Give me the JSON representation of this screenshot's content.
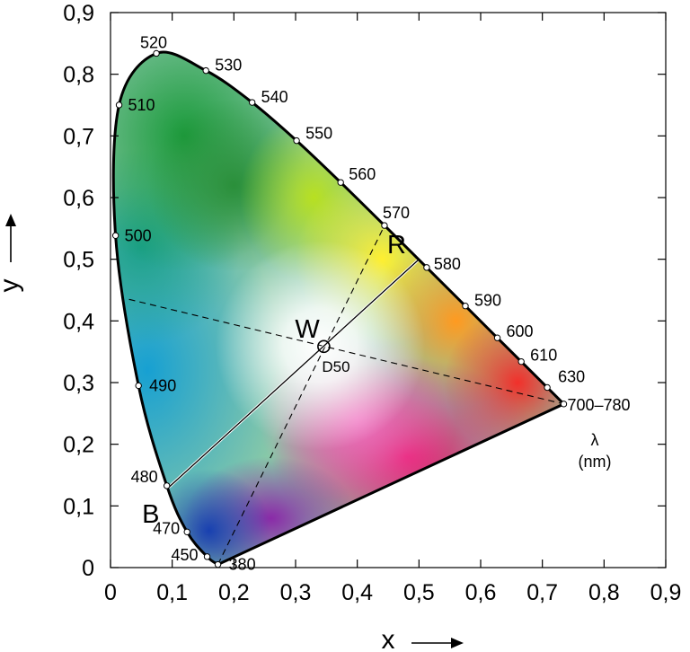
{
  "chart_data": {
    "type": "scatter",
    "title": "",
    "xlabel": "x",
    "ylabel": "y",
    "xlim": [
      0,
      0.9
    ],
    "ylim": [
      0,
      0.9
    ],
    "x_ticks": [
      "0",
      "0,1",
      "0,2",
      "0,3",
      "0,4",
      "0,5",
      "0,6",
      "0,7",
      "0,8",
      "0,9"
    ],
    "y_ticks": [
      "0",
      "0,1",
      "0,2",
      "0,3",
      "0,4",
      "0,5",
      "0,6",
      "0,7",
      "0,8",
      "0,9"
    ],
    "grid": false,
    "spectral_locus": [
      {
        "label": "380",
        "x": 0.1741,
        "y": 0.005
      },
      {
        "label": "450",
        "x": 0.1566,
        "y": 0.0177
      },
      {
        "label": "470",
        "x": 0.1241,
        "y": 0.0578
      },
      {
        "label": "480",
        "x": 0.0913,
        "y": 0.1327
      },
      {
        "label": "490",
        "x": 0.0454,
        "y": 0.295
      },
      {
        "label": "500",
        "x": 0.0082,
        "y": 0.5384
      },
      {
        "label": "510",
        "x": 0.0139,
        "y": 0.7502
      },
      {
        "label": "520",
        "x": 0.0743,
        "y": 0.8338
      },
      {
        "label": "530",
        "x": 0.1547,
        "y": 0.8059
      },
      {
        "label": "540",
        "x": 0.2296,
        "y": 0.7543
      },
      {
        "label": "550",
        "x": 0.3016,
        "y": 0.6923
      },
      {
        "label": "560",
        "x": 0.3731,
        "y": 0.6245
      },
      {
        "label": "570",
        "x": 0.4441,
        "y": 0.5547
      },
      {
        "label": "580",
        "x": 0.5125,
        "y": 0.4866
      },
      {
        "label": "590",
        "x": 0.5752,
        "y": 0.4242
      },
      {
        "label": "600",
        "x": 0.627,
        "y": 0.3725
      },
      {
        "label": "610",
        "x": 0.6658,
        "y": 0.334
      },
      {
        "label": "630",
        "x": 0.7079,
        "y": 0.292
      },
      {
        "label": "700–780",
        "x": 0.7347,
        "y": 0.2653
      }
    ],
    "white_point": {
      "letter": "W",
      "name": "D50",
      "x": 0.3457,
      "y": 0.3585
    },
    "markers": [
      {
        "letter": "R",
        "x": 0.498,
        "y": 0.498
      },
      {
        "letter": "B",
        "x": 0.092,
        "y": 0.128
      }
    ],
    "solid_line": [
      [
        0.092,
        0.128
      ],
      [
        0.498,
        0.498
      ]
    ],
    "dashed_lines": [
      [
        [
          0.1741,
          0.005
        ],
        [
          0.4441,
          0.5547
        ]
      ],
      [
        [
          0.03,
          0.435
        ],
        [
          0.7347,
          0.2653
        ]
      ]
    ],
    "unit_label": [
      "λ",
      "(nm)"
    ]
  }
}
